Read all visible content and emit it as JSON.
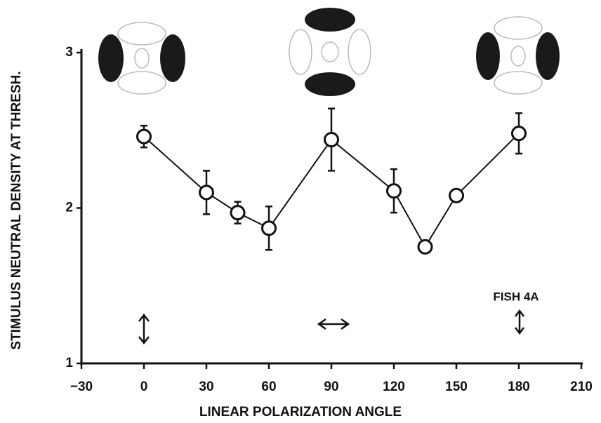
{
  "chart_data": {
    "type": "line",
    "x_label": "LINEAR POLARIZATION ANGLE",
    "y_label": "STIMULUS NEUTRAL DENSITY AT THRESH.",
    "annotation": "FISH 4A",
    "x": [
      0,
      30,
      45,
      60,
      90,
      120,
      135,
      150,
      180
    ],
    "series": [
      {
        "color": "#111111",
        "values": [
          2.46,
          2.1,
          1.97,
          1.87,
          2.44,
          2.11,
          1.75,
          2.08,
          2.48
        ],
        "errors": [
          0.07,
          0.14,
          0.07,
          0.14,
          0.2,
          0.14,
          null,
          null,
          0.13
        ]
      }
    ],
    "xlim": [
      -30,
      210
    ],
    "xticks": [
      {
        "value": -30,
        "label": "−30"
      },
      0,
      30,
      60,
      90,
      120,
      150,
      180,
      210
    ],
    "ylim": [
      1,
      3
    ],
    "yticks": [
      1,
      2,
      3
    ]
  }
}
